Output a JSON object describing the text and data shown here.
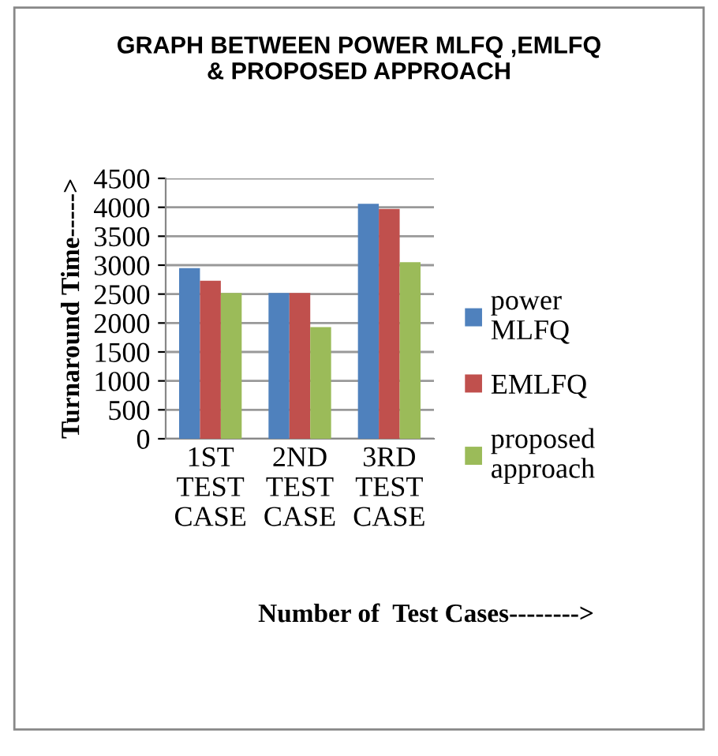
{
  "chart_data": {
    "type": "bar",
    "title": "GRAPH BETWEEN POWER MLFQ ,EMLFQ\n& PROPOSED APPROACH",
    "xlabel": "Number of  Test Cases-------->",
    "ylabel": "Turnaround Time----->",
    "categories": [
      "1ST TEST CASE",
      "2ND TEST CASE",
      "3RD TEST CASE"
    ],
    "series": [
      {
        "name": "power MLFQ",
        "color": "#4f81bd",
        "values": [
          2950,
          2520,
          4060
        ]
      },
      {
        "name": "EMLFQ",
        "color": "#c0504d",
        "values": [
          2730,
          2520,
          3970
        ]
      },
      {
        "name": "proposed approach",
        "color": "#9bbb59",
        "values": [
          2520,
          1930,
          3050
        ]
      }
    ],
    "ylim": [
      0,
      4500
    ],
    "yticks": [
      0,
      500,
      1000,
      1500,
      2000,
      2500,
      3000,
      3500,
      4000,
      4500
    ],
    "grid": "y",
    "legend": "right"
  }
}
